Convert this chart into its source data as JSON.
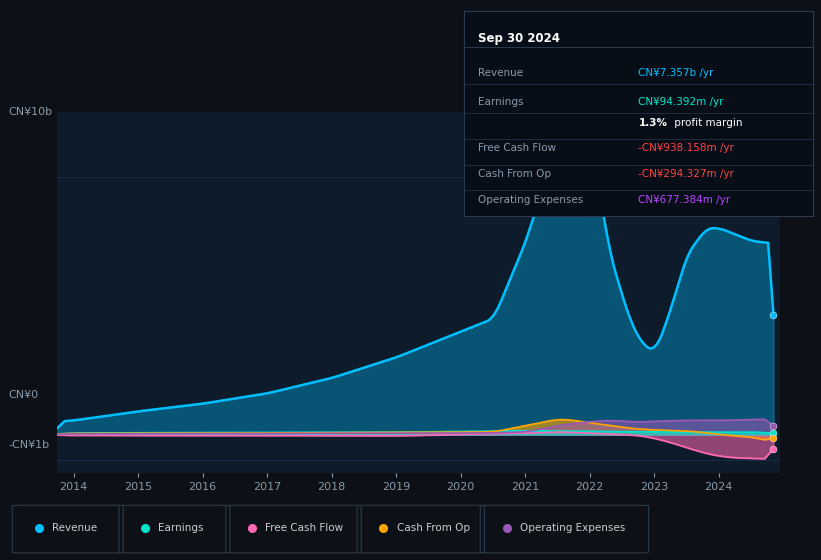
{
  "bg_color": "#0d1117",
  "plot_bg_color": "#0d1b2a",
  "panel_bg_color": "#0a1520",
  "grid_color": "#1e3050",
  "title_text": "Sep 30 2024",
  "info_rows": [
    {
      "label": "Revenue",
      "value": "CN¥7.357b /yr",
      "value_color": "#00bfff"
    },
    {
      "label": "Earnings",
      "value": "CN¥94.392m /yr",
      "value_color": "#00e5cc"
    },
    {
      "label": "",
      "value": "1.3% profit margin",
      "value_color": "#cccccc",
      "bold_part": "1.3%"
    },
    {
      "label": "Free Cash Flow",
      "value": "-CN¥938.158m /yr",
      "value_color": "#ff4444"
    },
    {
      "label": "Cash From Op",
      "value": "-CN¥294.327m /yr",
      "value_color": "#ff4444"
    },
    {
      "label": "Operating Expenses",
      "value": "CN¥677.384m /yr",
      "value_color": "#bb44ff"
    }
  ],
  "ylabel_top": "CN¥10b",
  "ylabel_zero": "CN¥0",
  "ylabel_neg": "-CN¥1b",
  "x_labels": [
    "2014",
    "2015",
    "2016",
    "2017",
    "2018",
    "2019",
    "2020",
    "2021",
    "2022",
    "2023",
    "2024"
  ],
  "legend_items": [
    {
      "label": "Revenue",
      "color": "#00bfff"
    },
    {
      "label": "Earnings",
      "color": "#00e5cc"
    },
    {
      "label": "Free Cash Flow",
      "color": "#ff69b4"
    },
    {
      "label": "Cash From Op",
      "color": "#ffa500"
    },
    {
      "label": "Operating Expenses",
      "color": "#9b59b6"
    }
  ],
  "revenue_color": "#00bfff",
  "earnings_color": "#00e5cc",
  "fcf_color": "#ff69b4",
  "cashop_color": "#ffa500",
  "opex_color": "#9b59b6"
}
